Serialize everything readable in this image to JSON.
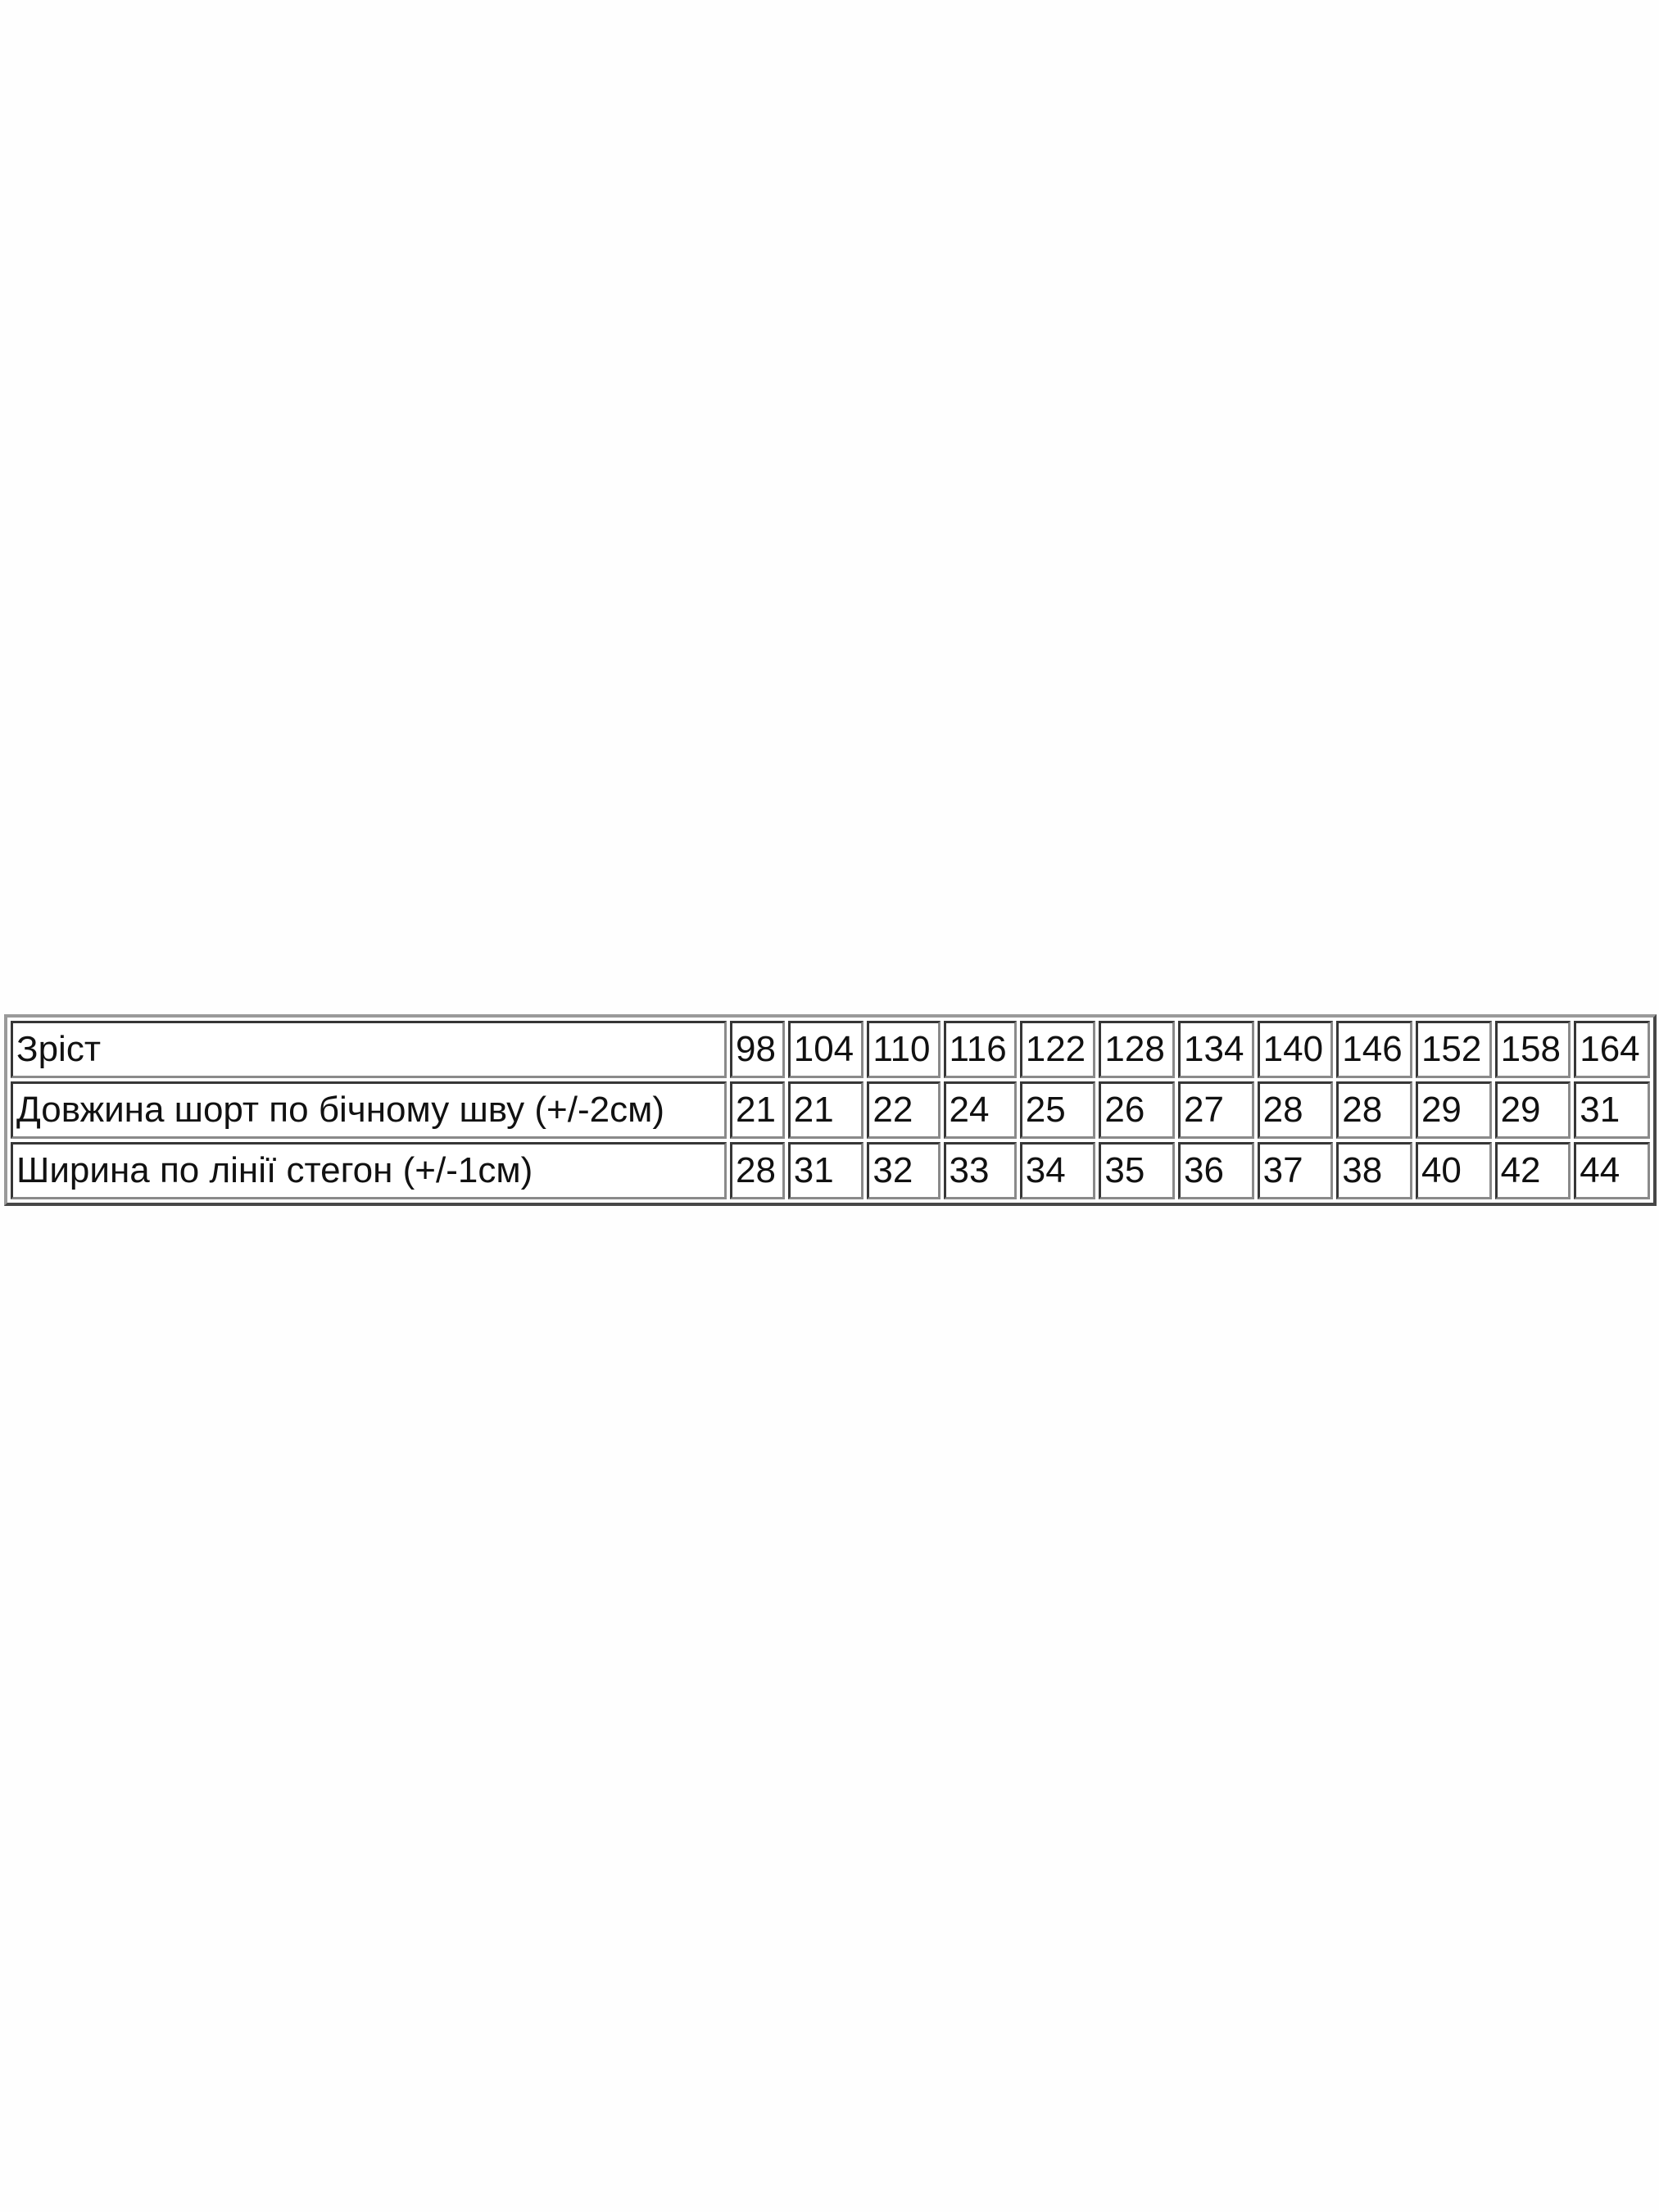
{
  "table": {
    "rows": [
      {
        "label": "Зріст",
        "values": [
          "98",
          "104",
          "110",
          "116",
          "122",
          "128",
          "134",
          "140",
          "146",
          "152",
          "158",
          "164"
        ]
      },
      {
        "label": "Довжина шорт по бічному шву (+/-2см)",
        "values": [
          "21",
          "21",
          "22",
          "24",
          "25",
          "26",
          "27",
          "28",
          "28",
          "29",
          "29",
          "31"
        ]
      },
      {
        "label": "Ширина по лінії стегон (+/-1см)",
        "values": [
          "28",
          "31",
          "32",
          "33",
          "34",
          "35",
          "36",
          "37",
          "38",
          "40",
          "42",
          "44"
        ]
      }
    ]
  }
}
